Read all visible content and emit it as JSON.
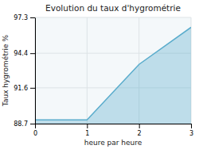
{
  "chart_data": {
    "type": "area",
    "title": "Evolution du taux d'hygrométrie",
    "xlabel": "heure par heure",
    "ylabel": "Taux hygrométrie %",
    "x": [
      0,
      1,
      2,
      3
    ],
    "values": [
      89.0,
      89.0,
      93.5,
      96.5
    ],
    "xlim": [
      0,
      3
    ],
    "ylim": [
      88.7,
      97.3
    ],
    "xticks": [
      0,
      1,
      2,
      3
    ],
    "yticks": [
      88.7,
      91.6,
      94.4,
      97.3
    ],
    "grid": true,
    "color": "#5aaccc"
  }
}
